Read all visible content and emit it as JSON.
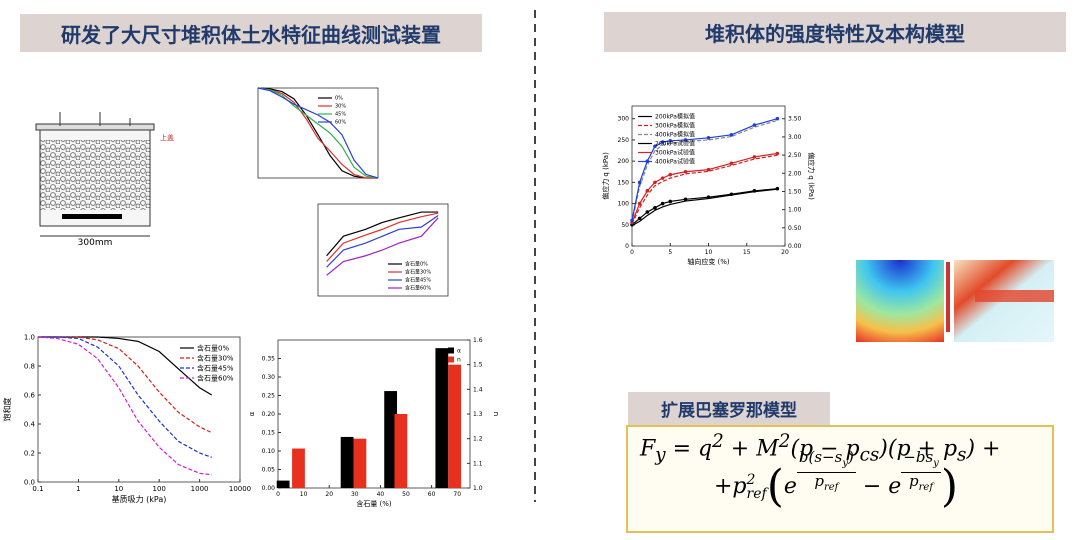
{
  "left_panel": {
    "title": "研发了大尺寸堆积体土水特征曲线测试装置",
    "device": {
      "top_label": "上盖",
      "width_label": "300mm"
    },
    "grading": {
      "type": "line",
      "x": [
        0,
        1,
        2,
        3,
        4,
        5,
        6,
        7,
        8,
        9,
        10
      ],
      "xlim": [
        0,
        10
      ],
      "ylim": [
        0,
        100
      ],
      "legend": "upper right",
      "series": [
        {
          "name": "0%",
          "color": "#000000",
          "values": [
            100,
            99,
            96,
            88,
            70,
            48,
            25,
            8,
            2,
            0,
            0
          ]
        },
        {
          "name": "30%",
          "color": "#e0302a",
          "values": [
            100,
            98,
            94,
            84,
            66,
            44,
            30,
            15,
            4,
            0,
            0
          ]
        },
        {
          "name": "45%",
          "color": "#2fb34a",
          "values": [
            100,
            98,
            92,
            80,
            70,
            60,
            50,
            35,
            12,
            2,
            0
          ]
        },
        {
          "name": "60%",
          "color": "#2b3fd6",
          "values": [
            100,
            97,
            90,
            82,
            76,
            70,
            62,
            48,
            20,
            4,
            0
          ]
        }
      ]
    },
    "density": {
      "type": "line",
      "x": [
        0.1,
        0.2,
        0.5,
        1,
        2,
        5,
        10
      ],
      "xlog": true,
      "xlim": [
        0.07,
        15
      ],
      "ylim": [
        1.2,
        2.0
      ],
      "legend": "lower right",
      "series": [
        {
          "name": "含石量0%",
          "color": "#000000",
          "values": [
            1.55,
            1.72,
            1.78,
            1.84,
            1.88,
            1.93,
            1.93
          ]
        },
        {
          "name": "含石量30%",
          "color": "#e0302a",
          "values": [
            1.5,
            1.66,
            1.73,
            1.78,
            1.84,
            1.89,
            1.92
          ]
        },
        {
          "name": "含石量45%",
          "color": "#2b3fd6",
          "values": [
            1.45,
            1.6,
            1.66,
            1.72,
            1.78,
            1.8,
            1.9
          ]
        },
        {
          "name": "含石量60%",
          "color": "#a020c0",
          "values": [
            1.38,
            1.5,
            1.55,
            1.6,
            1.66,
            1.72,
            1.88
          ]
        }
      ]
    },
    "swcc": {
      "type": "line",
      "x": [
        0.1,
        0.3,
        1,
        3,
        10,
        30,
        100,
        300,
        1000,
        2000
      ],
      "xlog": true,
      "xlim": [
        0.1,
        10000
      ],
      "xticks": [
        0.1,
        1,
        10,
        100,
        1000,
        10000
      ],
      "ylim": [
        0,
        1.0
      ],
      "yticks": [
        {
          "value": 0,
          "label": "0.0"
        },
        {
          "value": 0.2,
          "label": "0.2"
        },
        {
          "value": 0.4,
          "label": "0.4"
        },
        {
          "value": 0.6,
          "label": "0.6"
        },
        {
          "value": 0.8,
          "label": "0.8"
        },
        {
          "value": 1.0,
          "label": "1.0"
        }
      ],
      "xlabel": "基质吸力 (kPa)",
      "ylabel": "饱和度",
      "legend": "upper right",
      "series": [
        {
          "name": "含石量0%",
          "color": "#000000",
          "values": [
            1,
            1,
            1,
            1,
            0.99,
            0.97,
            0.9,
            0.78,
            0.65,
            0.6
          ]
        },
        {
          "name": "含石量30%",
          "color": "#d42020",
          "dash": true,
          "values": [
            1,
            1,
            1,
            0.98,
            0.92,
            0.8,
            0.62,
            0.48,
            0.38,
            0.34
          ]
        },
        {
          "name": "含石量45%",
          "color": "#2030d0",
          "dash": true,
          "values": [
            1,
            1,
            0.99,
            0.93,
            0.8,
            0.6,
            0.42,
            0.28,
            0.2,
            0.17
          ]
        },
        {
          "name": "含石量60%",
          "color": "#d020d0",
          "dash": true,
          "values": [
            1,
            0.99,
            0.95,
            0.85,
            0.65,
            0.42,
            0.24,
            0.12,
            0.06,
            0.05
          ]
        }
      ]
    },
    "params": {
      "type": "bar",
      "xlim": [
        0,
        75
      ],
      "xticks": [
        0,
        10,
        20,
        30,
        40,
        50,
        60,
        70
      ],
      "xlabel": "含石量 (%)",
      "ylim": [
        0,
        0.4
      ],
      "yticks": [
        {
          "value": 0,
          "label": "0.00"
        },
        {
          "value": 0.05,
          "label": "0.05"
        },
        {
          "value": 0.1,
          "label": "0.10"
        },
        {
          "value": 0.15,
          "label": "0.15"
        },
        {
          "value": 0.2,
          "label": "0.20"
        },
        {
          "value": 0.25,
          "label": "0.25"
        },
        {
          "value": 0.3,
          "label": "0.30"
        },
        {
          "value": 0.35,
          "label": "0.35"
        }
      ],
      "y2lim": [
        1.0,
        1.6
      ],
      "y2ticks": [
        {
          "value": 1.0,
          "label": "1.0"
        },
        {
          "value": 1.1,
          "label": "1.1"
        },
        {
          "value": 1.2,
          "label": "1.2"
        },
        {
          "value": 1.3,
          "label": "1.3"
        },
        {
          "value": 1.4,
          "label": "1.4"
        },
        {
          "value": 1.5,
          "label": "1.5"
        },
        {
          "value": 1.6,
          "label": "1.6"
        }
      ],
      "ylabel": "α",
      "y2label": "n",
      "legend": "upper right",
      "series": [
        {
          "name": "α",
          "color": "#000000",
          "x": [
            2,
            27,
            44,
            64
          ],
          "values": [
            0.02,
            0.138,
            0.262,
            0.378
          ]
        },
        {
          "name": "n",
          "color": "#e8301e",
          "axis": "y2",
          "x": [
            8,
            32,
            48,
            69
          ],
          "values": [
            1.16,
            1.2,
            1.3,
            1.5
          ]
        }
      ]
    }
  },
  "right_panel": {
    "title": "堆积体的强度特性及本构模型",
    "triaxial": {
      "type": "line",
      "x": [
        0,
        1,
        2,
        3,
        4,
        5,
        7,
        10,
        13,
        16,
        19
      ],
      "xlim": [
        0,
        20
      ],
      "xticks": [
        0,
        5,
        10,
        15,
        20
      ],
      "ylim": [
        0,
        330
      ],
      "yticks": [
        0,
        50,
        100,
        150,
        200,
        250,
        300
      ],
      "y2lim": [
        0,
        3.85
      ],
      "y2ticks": [
        {
          "value": 0,
          "label": "0.00"
        },
        {
          "value": 0.5,
          "label": "0.50"
        },
        {
          "value": 1,
          "label": "1.00"
        },
        {
          "value": 1.5,
          "label": "1.50"
        },
        {
          "value": 2,
          "label": "2.00"
        },
        {
          "value": 2.5,
          "label": "2.50"
        },
        {
          "value": 3,
          "label": "3.00"
        },
        {
          "value": 3.5,
          "label": "3.50"
        }
      ],
      "xlabel": "轴向应变 (%)",
      "ylabel": "偏应力 q (kPa)",
      "y2label": "偏应力 q (kPa)",
      "legend": "upper left",
      "series": [
        {
          "name": "200kPa模拟值",
          "color": "#000000",
          "values": [
            48,
            58,
            72,
            84,
            92,
            98,
            106,
            112,
            120,
            128,
            134
          ]
        },
        {
          "name": "300kPa模拟值",
          "color": "#d42020",
          "dash": true,
          "values": [
            52,
            90,
            120,
            142,
            152,
            160,
            170,
            176,
            190,
            205,
            214
          ]
        },
        {
          "name": "400kPa模拟值",
          "color": "#888888",
          "dash": true,
          "values": [
            56,
            140,
            190,
            225,
            238,
            242,
            246,
            250,
            258,
            280,
            296
          ]
        },
        {
          "name": "200kPa试验值",
          "color": "#000000",
          "marker": true,
          "values": [
            50,
            65,
            80,
            90,
            100,
            105,
            110,
            115,
            122,
            130,
            135
          ]
        },
        {
          "name": "300kPa试验值",
          "color": "#d42020",
          "marker": true,
          "values": [
            55,
            100,
            130,
            150,
            160,
            168,
            175,
            180,
            195,
            210,
            218
          ]
        },
        {
          "name": "400kPa试验值",
          "color": "#1f3fd8",
          "marker": true,
          "values": [
            60,
            150,
            200,
            235,
            245,
            248,
            250,
            255,
            262,
            285,
            300
          ]
        }
      ]
    },
    "model_label": "扩展巴塞罗那模型",
    "formula": {
      "line1": [
        "F",
        "y",
        " = q",
        "2",
        " + M",
        "2",
        "(p − p",
        "cs",
        ")(p + p",
        "s",
        ") +"
      ],
      "line2": [
        "+p",
        "2",
        "ref",
        "e",
        "b(s−s",
        "y",
        ")",
        "p",
        "ref",
        " − e",
        "−bs",
        "y",
        "p",
        "ref"
      ]
    }
  }
}
